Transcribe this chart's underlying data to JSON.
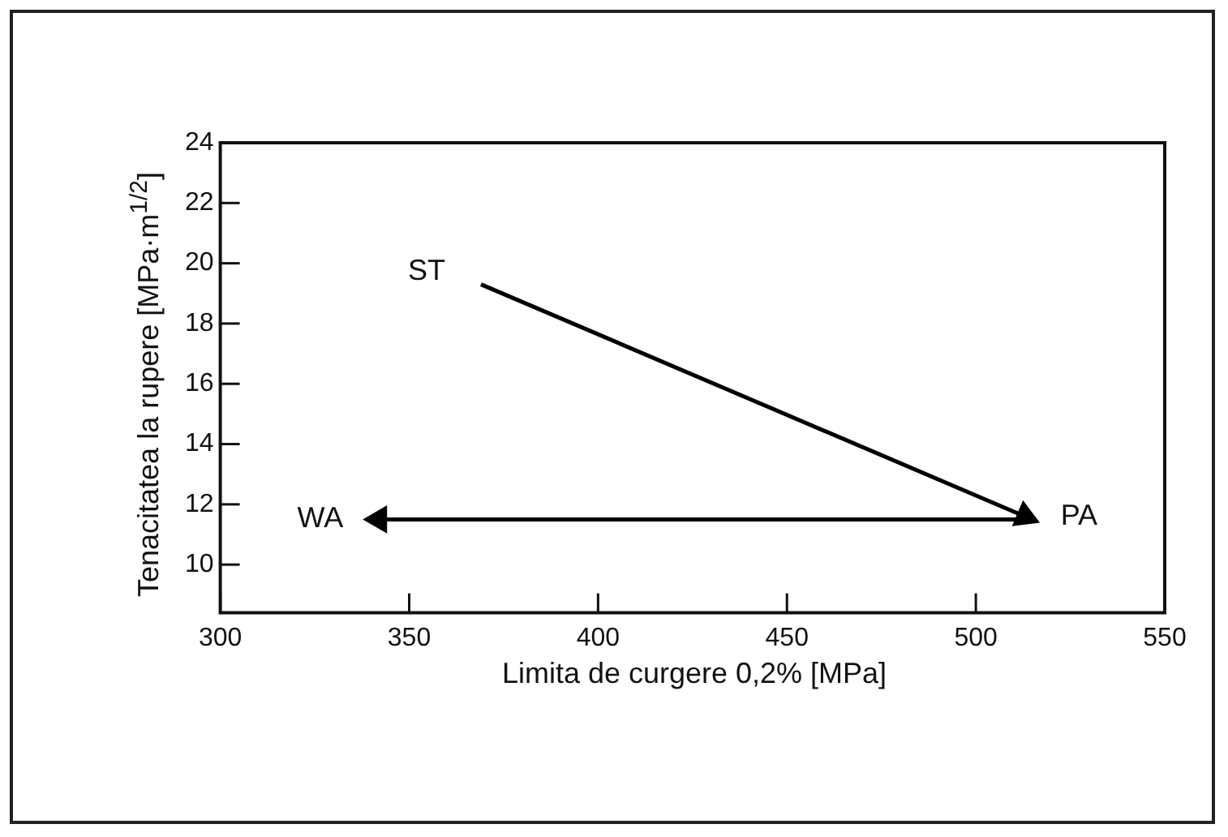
{
  "chart_data": {
    "type": "line",
    "xlabel": "Limita de curgere 0,2% [MPa]",
    "ylabel": "Tenacitatea la rupere [MPa·m$^{1/2}$]",
    "series": [
      {
        "x": [
          369,
          513
        ],
        "values": [
          19.3,
          11.6
        ],
        "color": "#000000"
      },
      {
        "x": [
          513,
          342
        ],
        "values": [
          11.5,
          11.5
        ],
        "color": "#000000"
      }
    ],
    "annotations": [
      {
        "text": "ST",
        "x": 369,
        "y": 19.3
      },
      {
        "text": "PA",
        "x": 513,
        "y": 11.6
      },
      {
        "text": "WA",
        "x": 342,
        "y": 11.5
      }
    ],
    "xlim": [
      300,
      550
    ],
    "xticks": [
      300,
      350,
      400,
      450,
      500,
      550
    ],
    "ylim": [
      8.4,
      24
    ],
    "yticks": [
      10,
      12,
      14,
      16,
      18,
      20,
      22,
      24
    ],
    "grid": false,
    "legend": false,
    "marker": "triangle",
    "line_style": "solid"
  }
}
